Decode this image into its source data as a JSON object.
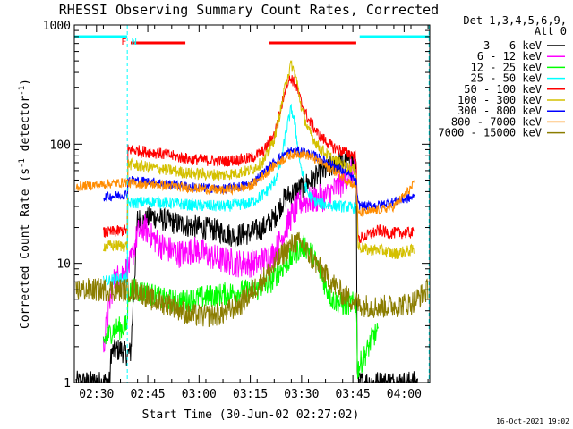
{
  "chart_data": {
    "type": "line",
    "title": "RHESSI Observing Summary Count Rates, Corrected",
    "xlabel": "Start Time (30-Jun-02 02:27:02)",
    "ylabel_main": "Corrected Count Rate (s",
    "ylabel_sup1": "-1",
    "ylabel_mid": " detector",
    "ylabel_sup2": "-1",
    "ylabel_end": ")",
    "footer": "16-Oct-2021 19:02",
    "x_range_minutes": [
      -3.5,
      100.5
    ],
    "x_ticks": [
      {
        "v": 3,
        "label": "02:30"
      },
      {
        "v": 18,
        "label": "02:45"
      },
      {
        "v": 33,
        "label": "03:00"
      },
      {
        "v": 48,
        "label": "03:15"
      },
      {
        "v": 63,
        "label": "03:30"
      },
      {
        "v": 78,
        "label": "03:45"
      },
      {
        "v": 93,
        "label": "04:00"
      }
    ],
    "y_scale": "log",
    "y_range": [
      1,
      1000
    ],
    "y_ticks": [
      {
        "v": 1,
        "label": "1"
      },
      {
        "v": 10,
        "label": "10"
      },
      {
        "v": 100,
        "label": "100"
      },
      {
        "v": 1000,
        "label": "1000"
      }
    ],
    "legend_title": [
      "Det 1,3,4,5,6,9,",
      "Att 0"
    ],
    "series": [
      {
        "name": "3 - 6 keV",
        "color": "#000000",
        "noise": 0.1,
        "x": [
          -3,
          7,
          7.2,
          10,
          12,
          13,
          15,
          17,
          19,
          23,
          28,
          33,
          38,
          43,
          48,
          52,
          55,
          58,
          62,
          66,
          70,
          74,
          78,
          79,
          79.3,
          81,
          84,
          88,
          92,
          97
        ],
        "y": [
          1,
          1,
          1.8,
          1.9,
          1.7,
          1.8,
          24,
          22,
          25,
          23,
          21,
          20,
          19,
          17,
          18,
          20,
          24,
          35,
          42,
          50,
          60,
          70,
          72,
          70,
          1,
          1,
          1,
          1,
          1,
          1
        ]
      },
      {
        "name": "6 - 12 keV",
        "color": "#ff00ff",
        "noise": 0.12,
        "x": [
          5,
          7,
          8,
          10,
          12,
          13,
          15,
          17,
          19,
          22,
          27,
          32,
          38,
          44,
          50,
          55,
          60,
          63,
          66,
          70,
          74,
          78,
          79
        ],
        "y": [
          2,
          5,
          7,
          8,
          9,
          10,
          18,
          20,
          17,
          14,
          12,
          13,
          11,
          10,
          10,
          12,
          25,
          33,
          34,
          36,
          45,
          60,
          62
        ]
      },
      {
        "name": "12 - 25 keV",
        "color": "#00ff00",
        "noise": 0.1,
        "x": [
          5,
          7,
          8,
          11,
          12,
          12.2,
          14,
          18,
          22,
          28,
          34,
          40,
          45,
          50,
          54,
          57,
          60,
          62,
          64,
          66,
          68,
          70,
          72,
          75,
          78,
          79,
          79.4,
          82,
          84,
          85.5
        ],
        "y": [
          2.2,
          2.6,
          2.8,
          2.9,
          3.0,
          5.6,
          6.0,
          5.7,
          5.0,
          4.8,
          5.2,
          5.5,
          5.8,
          6.0,
          7.0,
          9.0,
          11.0,
          13.0,
          14.0,
          12.0,
          9.0,
          6.5,
          5.0,
          4.5,
          4.6,
          4.6,
          1.3,
          1.8,
          2.5,
          2.6
        ]
      },
      {
        "name": "25 - 50 keV",
        "color": "#00ffff",
        "noise": 0.05,
        "x": [
          5,
          10,
          12,
          12.2,
          20,
          30,
          40,
          48,
          52,
          55,
          57,
          58.5,
          60,
          61,
          62,
          63,
          64,
          65,
          67,
          70,
          75,
          79
        ],
        "y": [
          7,
          7.5,
          7.5,
          32,
          33,
          31,
          30,
          32,
          38,
          48,
          70,
          130,
          200,
          150,
          90,
          60,
          45,
          38,
          33,
          31,
          30,
          29
        ]
      },
      {
        "name": "50 - 100 keV",
        "color": "#ff0000",
        "noise": 0.05,
        "x": [
          5,
          12,
          12.2,
          20,
          30,
          40,
          48,
          52,
          55,
          57,
          58.5,
          60,
          61.5,
          63,
          65,
          68,
          72,
          76,
          79,
          79.5,
          82,
          84,
          86,
          88,
          92,
          96
        ],
        "y": [
          18,
          19,
          90,
          85,
          75,
          72,
          76,
          88,
          120,
          200,
          320,
          360,
          300,
          220,
          160,
          120,
          95,
          85,
          80,
          16,
          17,
          18,
          19,
          18,
          18,
          18
        ]
      },
      {
        "name": "100 - 300 keV",
        "color": "#d4c000",
        "noise": 0.05,
        "x": [
          5,
          12,
          12.2,
          20,
          30,
          40,
          48,
          52,
          55,
          57,
          58.5,
          60,
          61.5,
          63,
          65,
          68,
          72,
          76,
          79,
          79.5,
          82,
          86,
          90,
          96
        ],
        "y": [
          14,
          14,
          68,
          63,
          57,
          55,
          60,
          72,
          110,
          200,
          340,
          470,
          350,
          200,
          130,
          95,
          75,
          65,
          60,
          14,
          13,
          13,
          12,
          13
        ]
      },
      {
        "name": "300 - 800 keV",
        "color": "#0000ff",
        "noise": 0.04,
        "x": [
          5,
          12,
          12.2,
          20,
          30,
          40,
          48,
          52,
          56,
          60,
          63,
          66,
          70,
          74,
          78,
          79,
          79.5,
          82,
          86,
          90,
          96
        ],
        "y": [
          36,
          38,
          50,
          48,
          44,
          42,
          46,
          58,
          75,
          88,
          87,
          82,
          72,
          62,
          52,
          48,
          31,
          30,
          31,
          33,
          36
        ]
      },
      {
        "name": "800 - 7000 keV",
        "color": "#ff8c00",
        "noise": 0.04,
        "x": [
          -3,
          5,
          12,
          12.2,
          20,
          30,
          40,
          48,
          52,
          56,
          60,
          63,
          66,
          70,
          74,
          78,
          79,
          79.5,
          82,
          86,
          90,
          96
        ],
        "y": [
          44,
          46,
          48,
          47,
          46,
          43,
          41,
          44,
          55,
          70,
          82,
          84,
          78,
          66,
          56,
          46,
          44,
          26,
          27,
          28,
          30,
          46
        ]
      },
      {
        "name": "7000 - 15000 keV",
        "color": "#8b7d00",
        "noise": 0.1,
        "x": [
          -3,
          10,
          15,
          20,
          25,
          30,
          35,
          40,
          45,
          50,
          55,
          58,
          61,
          63,
          66,
          70,
          75,
          80,
          85,
          90,
          95,
          100
        ],
        "y": [
          6,
          6,
          6,
          4.8,
          4.5,
          3.7,
          3.6,
          3.8,
          4.5,
          6.5,
          9.5,
          12.5,
          15,
          14.5,
          11,
          8,
          5.5,
          4.5,
          4.3,
          4.4,
          4.6,
          6
        ]
      }
    ],
    "flags": [
      {
        "label": "",
        "color": "#00ffff",
        "segments": [
          [
            -3.5,
            12
          ],
          [
            80,
            100.3
          ]
        ]
      },
      {
        "label": "",
        "color": "#ff0000",
        "segments": [
          [
            13,
            29
          ],
          [
            53.5,
            79
          ]
        ]
      }
    ],
    "flag_letters": [
      {
        "text": "F",
        "color": "#ff0000",
        "x": 11
      },
      {
        "text": "N",
        "color": "#00ffff",
        "x": 14
      }
    ],
    "vlines": [
      {
        "x": 12,
        "color": "#00ffff"
      },
      {
        "x": 100.3,
        "color": "#00ffff"
      }
    ]
  }
}
